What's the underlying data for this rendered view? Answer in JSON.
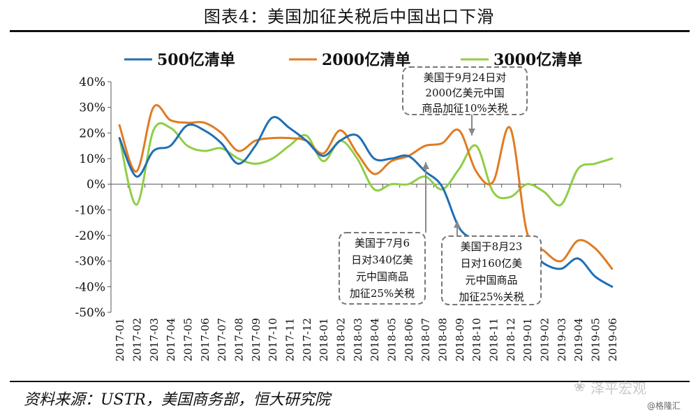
{
  "title": "图表4：美国加征关税后中国出口下滑",
  "source": "资料来源：USTR，美国商务部，恒大研究院",
  "watermark": {
    "brand": "泽平宏观",
    "handle": "@格隆汇",
    "icon": "wechat-logo-icon"
  },
  "chart_data": {
    "type": "line",
    "title": "",
    "xlabel": "",
    "ylabel": "",
    "y_format": "percent",
    "ylim": [
      -50,
      40
    ],
    "yticks": [
      -50,
      -40,
      -30,
      -20,
      -10,
      0,
      10,
      20,
      30,
      40
    ],
    "x": [
      "2017-01",
      "2017-02",
      "2017-03",
      "2017-04",
      "2017-05",
      "2017-06",
      "2017-07",
      "2017-08",
      "2017-09",
      "2017-10",
      "2017-11",
      "2017-12",
      "2018-01",
      "2018-02",
      "2018-03",
      "2018-04",
      "2018-05",
      "2018-06",
      "2018-07",
      "2018-08",
      "2018-09",
      "2018-10",
      "2018-11",
      "2018-12",
      "2019-01",
      "2019-02",
      "2019-03",
      "2019-04",
      "2019-05",
      "2019-06"
    ],
    "legend_position": "top",
    "grid": false,
    "series": [
      {
        "name": "500亿清单",
        "color": "#1f6fb5",
        "values": [
          18,
          3,
          13,
          15,
          23,
          21,
          16,
          8,
          15,
          26,
          22,
          17,
          11,
          17,
          19,
          10,
          10,
          11,
          5,
          -1,
          -17,
          -22,
          -26,
          -26,
          -25,
          -31,
          -33,
          -29,
          -36,
          -40
        ]
      },
      {
        "name": "2000亿清单",
        "color": "#e07b22",
        "values": [
          23,
          5,
          30,
          25,
          24,
          24,
          20,
          13,
          17,
          18,
          18,
          17,
          12,
          21,
          12,
          4,
          9,
          11,
          15,
          16,
          21,
          5,
          1,
          22,
          -19,
          -26,
          -30,
          -22,
          -25,
          -33
        ]
      },
      {
        "name": "3000亿清单",
        "color": "#8fce45",
        "values": [
          18,
          -8,
          21,
          22,
          15,
          13,
          14,
          10,
          8,
          10,
          15,
          19,
          9,
          17,
          10,
          -2,
          0,
          0,
          3,
          -2,
          6,
          15,
          -3,
          -5,
          0,
          -3,
          -8,
          6,
          8,
          10
        ]
      }
    ],
    "annotations": [
      {
        "text": [
          "美国于9月24日对",
          "2000亿美元中国",
          "商品加征10%关税"
        ],
        "points_to": "2018-09"
      },
      {
        "text": [
          "美国于7月6",
          "日对340亿美",
          "元中国商品",
          "加征25%关税"
        ],
        "points_to": "2018-07"
      },
      {
        "text": [
          "美国于8月23",
          "日对160亿美",
          "元中国商品",
          "加征25%关税"
        ],
        "points_to": "2018-08"
      }
    ]
  }
}
